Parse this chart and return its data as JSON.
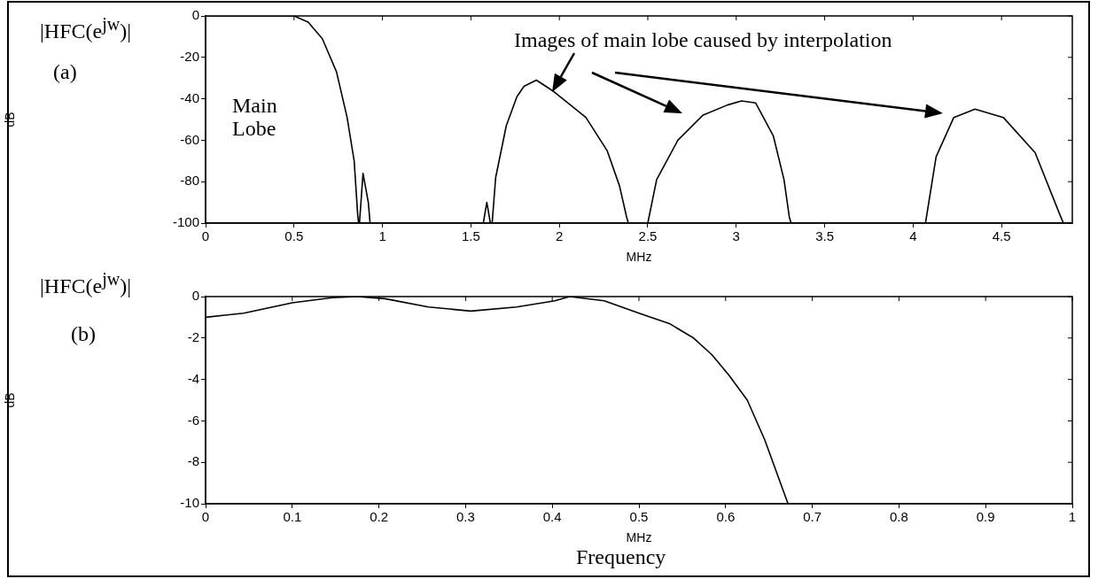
{
  "chart_data": [
    {
      "type": "line",
      "title": "|HFC(e$^{jw}$)|",
      "xlabel": "MHz",
      "ylabel": "dB",
      "annotations": [
        "(a)",
        "Main Lobe",
        "Images of main lobe caused by interpolation"
      ],
      "series": [
        {
          "color": "#000000",
          "x": [
            0,
            0.3,
            0.5,
            0.58,
            0.66,
            0.74,
            0.8,
            0.84,
            0.86,
            0.865,
            null,
            0.87,
            0.89,
            0.92,
            0.93,
            null,
            1.57,
            1.59,
            1.61,
            null,
            1.62,
            1.64,
            1.7,
            1.76,
            1.8,
            1.87,
            1.96,
            2.15,
            2.27,
            2.34,
            2.38,
            2.39,
            null,
            2.5,
            2.55,
            2.67,
            2.81,
            2.95,
            3.03,
            3.11,
            3.21,
            3.27,
            3.3,
            3.31,
            null,
            4.07,
            4.13,
            4.23,
            4.35,
            4.51,
            4.69,
            4.83,
            4.85
          ],
          "values": [
            0,
            0,
            0,
            -3,
            -11,
            -27,
            -49,
            -70,
            -96,
            -100,
            null,
            -100,
            -76,
            -90,
            -100,
            null,
            -100,
            -90,
            -100,
            null,
            -100,
            -78,
            -53,
            -39,
            -34,
            -31,
            -36,
            -49,
            -65,
            -82,
            -97,
            -100,
            null,
            -100,
            -79,
            -60,
            -48,
            -43,
            -41,
            -42,
            -58,
            -79,
            -97,
            -100,
            null,
            -100,
            -68,
            -49,
            -45,
            -49,
            -66,
            -96,
            -100
          ]
        }
      ],
      "xlim": [
        0,
        4.9
      ],
      "xticks": [
        0,
        0.5,
        1,
        1.5,
        2,
        2.5,
        3,
        3.5,
        4,
        4.5
      ],
      "ylim": [
        -100,
        0
      ],
      "yticks": [
        -100,
        -80,
        -60,
        -40,
        -20,
        0
      ],
      "grid": false,
      "legend": false
    },
    {
      "type": "line",
      "title": "|HFC(e$^{jw}$)|",
      "xlabel": "MHz",
      "ylabel": "dB",
      "annotations": [
        "(b)",
        "Frequency"
      ],
      "series": [
        {
          "color": "#000000",
          "x": [
            0,
            0.044,
            0.1,
            0.146,
            0.175,
            0.207,
            0.257,
            0.306,
            0.359,
            0.403,
            0.42,
            0.46,
            0.5,
            0.535,
            0.563,
            0.584,
            0.604,
            0.625,
            0.645,
            0.672
          ],
          "values": [
            -1,
            -0.8,
            -0.3,
            -0.05,
            0,
            -0.1,
            -0.5,
            -0.7,
            -0.5,
            -0.2,
            0,
            -0.2,
            -0.8,
            -1.3,
            -2,
            -2.8,
            -3.8,
            -5,
            -6.9,
            -10
          ]
        }
      ],
      "xlim": [
        0,
        1
      ],
      "xticks": [
        0,
        0.1,
        0.2,
        0.3,
        0.4,
        0.5,
        0.6,
        0.7,
        0.8,
        0.9,
        1
      ],
      "ylim": [
        -10,
        0
      ],
      "yticks": [
        -10,
        -8,
        -6,
        -4,
        -2,
        0
      ],
      "grid": false,
      "legend": false
    }
  ]
}
